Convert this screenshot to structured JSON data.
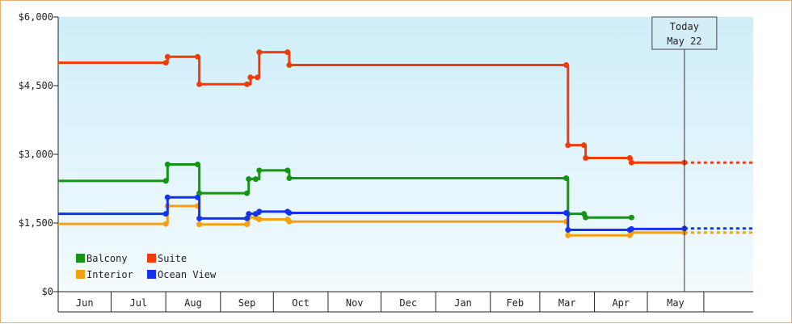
{
  "chart_data": {
    "type": "line",
    "step": true,
    "title": "",
    "xlabel": "",
    "ylabel": "",
    "ylim": [
      0,
      6000
    ],
    "yticks": [
      {
        "value": 0,
        "label": "$0"
      },
      {
        "value": 1500,
        "label": "$1,500"
      },
      {
        "value": 3000,
        "label": "$3,000"
      },
      {
        "value": 4500,
        "label": "$4,500"
      },
      {
        "value": 6000,
        "label": "$6,000"
      }
    ],
    "xlim": [
      "2018-06-01",
      "2019-06-30"
    ],
    "months": [
      {
        "label": "Jun",
        "start": "2018-06-01"
      },
      {
        "label": "Jul",
        "start": "2018-07-01"
      },
      {
        "label": "Aug",
        "start": "2018-08-01"
      },
      {
        "label": "Sep",
        "start": "2018-09-01"
      },
      {
        "label": "Oct",
        "start": "2018-10-01"
      },
      {
        "label": "Nov",
        "start": "2018-11-01"
      },
      {
        "label": "Dec",
        "start": "2018-12-01"
      },
      {
        "label": "Jan",
        "start": "2019-01-01"
      },
      {
        "label": "Feb",
        "start": "2019-02-01"
      },
      {
        "label": "Mar",
        "start": "2019-03-01"
      },
      {
        "label": "Apr",
        "start": "2019-04-01"
      },
      {
        "label": "May",
        "start": "2019-05-01"
      }
    ],
    "today": {
      "date": "2019-05-22",
      "line1": "Today",
      "line2": "May 22"
    },
    "legend": {
      "position": "bottom-left"
    },
    "grid": false,
    "series": [
      {
        "name": "Suite",
        "color": "#f03c0a",
        "extend_to": "2019-06-30",
        "points": [
          {
            "date": "2018-06-01",
            "value": 5000
          },
          {
            "date": "2018-08-01",
            "value": 5000
          },
          {
            "date": "2018-08-02",
            "value": 5130
          },
          {
            "date": "2018-08-19",
            "value": 5130
          },
          {
            "date": "2018-08-20",
            "value": 4530
          },
          {
            "date": "2018-09-16",
            "value": 4530
          },
          {
            "date": "2018-09-18",
            "value": 4680
          },
          {
            "date": "2018-09-22",
            "value": 4680
          },
          {
            "date": "2018-09-23",
            "value": 5230
          },
          {
            "date": "2018-10-09",
            "value": 5230
          },
          {
            "date": "2018-10-10",
            "value": 4950
          },
          {
            "date": "2019-03-16",
            "value": 4950
          },
          {
            "date": "2019-03-17",
            "value": 3200
          },
          {
            "date": "2019-03-26",
            "value": 3200
          },
          {
            "date": "2019-03-27",
            "value": 2920
          },
          {
            "date": "2019-04-21",
            "value": 2920
          },
          {
            "date": "2019-04-22",
            "value": 2820
          },
          {
            "date": "2019-05-22",
            "value": 2820
          }
        ]
      },
      {
        "name": "Balcony",
        "color": "#149614",
        "extend_to": null,
        "points": [
          {
            "date": "2018-06-01",
            "value": 2420
          },
          {
            "date": "2018-08-01",
            "value": 2420
          },
          {
            "date": "2018-08-02",
            "value": 2780
          },
          {
            "date": "2018-08-19",
            "value": 2780
          },
          {
            "date": "2018-08-20",
            "value": 2150
          },
          {
            "date": "2018-09-16",
            "value": 2150
          },
          {
            "date": "2018-09-17",
            "value": 2460
          },
          {
            "date": "2018-09-21",
            "value": 2460
          },
          {
            "date": "2018-09-23",
            "value": 2650
          },
          {
            "date": "2018-10-09",
            "value": 2650
          },
          {
            "date": "2018-10-10",
            "value": 2480
          },
          {
            "date": "2019-03-16",
            "value": 2480
          },
          {
            "date": "2019-03-17",
            "value": 1700
          },
          {
            "date": "2019-03-26",
            "value": 1700
          },
          {
            "date": "2019-03-27",
            "value": 1620
          },
          {
            "date": "2019-04-22",
            "value": 1620
          }
        ]
      },
      {
        "name": "Ocean View",
        "color": "#1432f0",
        "extend_to": "2019-06-30",
        "points": [
          {
            "date": "2018-06-01",
            "value": 1700
          },
          {
            "date": "2018-08-01",
            "value": 1700
          },
          {
            "date": "2018-08-02",
            "value": 2060
          },
          {
            "date": "2018-08-19",
            "value": 2060
          },
          {
            "date": "2018-08-20",
            "value": 1600
          },
          {
            "date": "2018-09-16",
            "value": 1600
          },
          {
            "date": "2018-09-17",
            "value": 1700
          },
          {
            "date": "2018-09-21",
            "value": 1700
          },
          {
            "date": "2018-09-23",
            "value": 1750
          },
          {
            "date": "2018-10-09",
            "value": 1750
          },
          {
            "date": "2018-10-10",
            "value": 1720
          },
          {
            "date": "2019-03-16",
            "value": 1720
          },
          {
            "date": "2019-03-17",
            "value": 1350
          },
          {
            "date": "2019-04-21",
            "value": 1350
          },
          {
            "date": "2019-04-22",
            "value": 1370
          },
          {
            "date": "2019-05-22",
            "value": 1380
          }
        ]
      },
      {
        "name": "Interior",
        "color": "#f5a014",
        "extend_to": "2019-06-30",
        "points": [
          {
            "date": "2018-06-01",
            "value": 1480
          },
          {
            "date": "2018-08-01",
            "value": 1480
          },
          {
            "date": "2018-08-02",
            "value": 1870
          },
          {
            "date": "2018-08-19",
            "value": 1870
          },
          {
            "date": "2018-08-20",
            "value": 1470
          },
          {
            "date": "2018-09-16",
            "value": 1470
          },
          {
            "date": "2018-09-17",
            "value": 1620
          },
          {
            "date": "2018-09-21",
            "value": 1620
          },
          {
            "date": "2018-09-23",
            "value": 1580
          },
          {
            "date": "2018-10-09",
            "value": 1580
          },
          {
            "date": "2018-10-10",
            "value": 1530
          },
          {
            "date": "2019-03-16",
            "value": 1530
          },
          {
            "date": "2019-03-17",
            "value": 1230
          },
          {
            "date": "2019-04-21",
            "value": 1230
          },
          {
            "date": "2019-04-22",
            "value": 1290
          },
          {
            "date": "2019-05-22",
            "value": 1290
          }
        ]
      }
    ],
    "legend_order": [
      "Balcony",
      "Suite",
      "Interior",
      "Ocean View"
    ]
  }
}
